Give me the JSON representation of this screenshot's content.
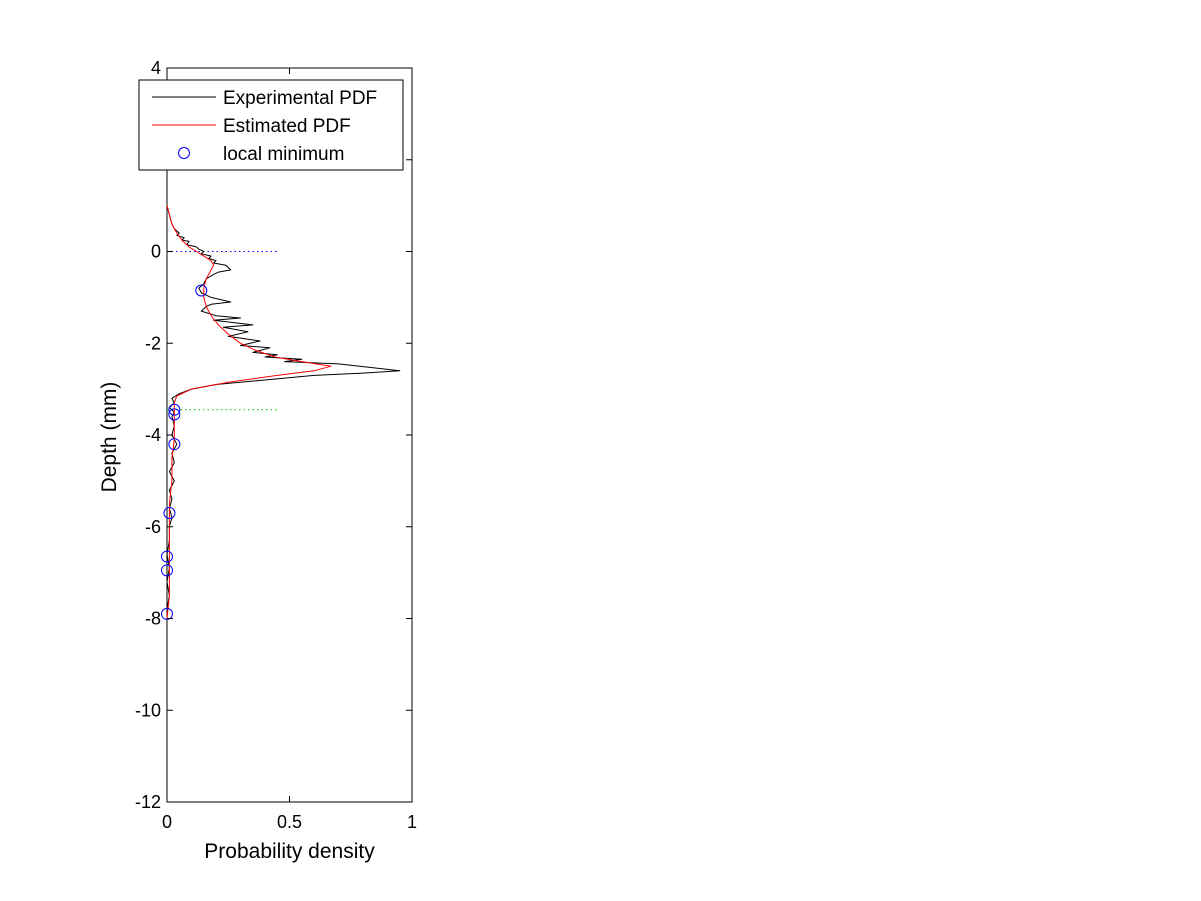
{
  "chart_data": {
    "type": "line",
    "title": "",
    "xlabel": "Probability density",
    "ylabel": "Depth (mm)",
    "xlim": [
      0,
      1
    ],
    "ylim": [
      -12,
      4
    ],
    "x_ticks": [
      0,
      0.5,
      1
    ],
    "x_tick_labels": [
      "0",
      "0.5",
      "1"
    ],
    "y_ticks": [
      -12,
      -10,
      -8,
      -6,
      -4,
      -2,
      0,
      2,
      4
    ],
    "y_tick_labels": [
      "-12",
      "-10",
      "-8",
      "-6",
      "-4",
      "-2",
      "0",
      "",
      "4"
    ],
    "grid": false,
    "legend_position": "top",
    "series": [
      {
        "name": "Experimental PDF",
        "color": "#000000",
        "style": "solid",
        "points": [
          [
            0.0,
            1.0
          ],
          [
            0.01,
            0.8
          ],
          [
            0.02,
            0.6
          ],
          [
            0.03,
            0.5
          ],
          [
            0.05,
            0.4
          ],
          [
            0.04,
            0.35
          ],
          [
            0.07,
            0.3
          ],
          [
            0.06,
            0.25
          ],
          [
            0.09,
            0.22
          ],
          [
            0.08,
            0.15
          ],
          [
            0.12,
            0.1
          ],
          [
            0.13,
            0.05
          ],
          [
            0.15,
            0.0
          ],
          [
            0.14,
            -0.05
          ],
          [
            0.18,
            -0.1
          ],
          [
            0.17,
            -0.15
          ],
          [
            0.2,
            -0.2
          ],
          [
            0.19,
            -0.25
          ],
          [
            0.24,
            -0.3
          ],
          [
            0.26,
            -0.4
          ],
          [
            0.21,
            -0.45
          ],
          [
            0.19,
            -0.5
          ],
          [
            0.16,
            -0.6
          ],
          [
            0.15,
            -0.7
          ],
          [
            0.13,
            -0.8
          ],
          [
            0.14,
            -0.9
          ],
          [
            0.18,
            -1.0
          ],
          [
            0.26,
            -1.1
          ],
          [
            0.18,
            -1.15
          ],
          [
            0.16,
            -1.2
          ],
          [
            0.14,
            -1.3
          ],
          [
            0.2,
            -1.4
          ],
          [
            0.3,
            -1.45
          ],
          [
            0.19,
            -1.5
          ],
          [
            0.35,
            -1.6
          ],
          [
            0.23,
            -1.65
          ],
          [
            0.33,
            -1.75
          ],
          [
            0.25,
            -1.85
          ],
          [
            0.38,
            -1.95
          ],
          [
            0.3,
            -2.05
          ],
          [
            0.42,
            -2.1
          ],
          [
            0.35,
            -2.2
          ],
          [
            0.45,
            -2.25
          ],
          [
            0.4,
            -2.3
          ],
          [
            0.55,
            -2.35
          ],
          [
            0.48,
            -2.4
          ],
          [
            0.7,
            -2.45
          ],
          [
            0.95,
            -2.6
          ],
          [
            0.8,
            -2.65
          ],
          [
            0.6,
            -2.7
          ],
          [
            0.4,
            -2.8
          ],
          [
            0.2,
            -2.9
          ],
          [
            0.1,
            -3.0
          ],
          [
            0.05,
            -3.1
          ],
          [
            0.02,
            -3.2
          ],
          [
            0.03,
            -3.3
          ],
          [
            0.01,
            -3.4
          ],
          [
            0.03,
            -3.5
          ],
          [
            0.02,
            -3.6
          ],
          [
            0.03,
            -3.8
          ],
          [
            0.02,
            -4.0
          ],
          [
            0.04,
            -4.2
          ],
          [
            0.02,
            -4.4
          ],
          [
            0.03,
            -4.6
          ],
          [
            0.01,
            -4.8
          ],
          [
            0.03,
            -5.0
          ],
          [
            0.01,
            -5.2
          ],
          [
            0.02,
            -5.4
          ],
          [
            0.01,
            -5.6
          ],
          [
            0.02,
            -5.8
          ],
          [
            0.01,
            -6.0
          ],
          [
            0.01,
            -6.3
          ],
          [
            0.0,
            -6.6
          ],
          [
            0.01,
            -6.9
          ],
          [
            0.0,
            -7.2
          ],
          [
            0.01,
            -7.5
          ],
          [
            0.0,
            -7.8
          ],
          [
            0.0,
            -8.0
          ]
        ]
      },
      {
        "name": "Estimated PDF",
        "color": "#ff0000",
        "style": "solid",
        "points": [
          [
            0.0,
            1.0
          ],
          [
            0.01,
            0.8
          ],
          [
            0.02,
            0.6
          ],
          [
            0.04,
            0.4
          ],
          [
            0.06,
            0.25
          ],
          [
            0.09,
            0.1
          ],
          [
            0.12,
            0.0
          ],
          [
            0.15,
            -0.1
          ],
          [
            0.18,
            -0.2
          ],
          [
            0.19,
            -0.3
          ],
          [
            0.18,
            -0.4
          ],
          [
            0.17,
            -0.5
          ],
          [
            0.16,
            -0.6
          ],
          [
            0.15,
            -0.8
          ],
          [
            0.15,
            -1.0
          ],
          [
            0.16,
            -1.2
          ],
          [
            0.18,
            -1.4
          ],
          [
            0.21,
            -1.6
          ],
          [
            0.25,
            -1.8
          ],
          [
            0.3,
            -2.0
          ],
          [
            0.36,
            -2.15
          ],
          [
            0.44,
            -2.3
          ],
          [
            0.55,
            -2.4
          ],
          [
            0.67,
            -2.5
          ],
          [
            0.6,
            -2.6
          ],
          [
            0.45,
            -2.7
          ],
          [
            0.25,
            -2.85
          ],
          [
            0.1,
            -3.0
          ],
          [
            0.04,
            -3.15
          ],
          [
            0.03,
            -3.3
          ],
          [
            0.03,
            -3.5
          ],
          [
            0.03,
            -3.8
          ],
          [
            0.03,
            -4.1
          ],
          [
            0.02,
            -4.5
          ],
          [
            0.02,
            -5.0
          ],
          [
            0.01,
            -5.5
          ],
          [
            0.01,
            -6.0
          ],
          [
            0.01,
            -6.5
          ],
          [
            0.01,
            -7.0
          ],
          [
            0.01,
            -7.5
          ],
          [
            0.0,
            -8.0
          ]
        ]
      },
      {
        "name": "local minimum",
        "color": "#0000ff",
        "style": "marker-circle",
        "points": [
          [
            0.14,
            -0.85
          ],
          [
            0.03,
            -3.45
          ],
          [
            0.03,
            -3.55
          ],
          [
            0.03,
            -4.2
          ],
          [
            0.01,
            -5.7
          ],
          [
            0.0,
            -6.65
          ],
          [
            0.0,
            -6.95
          ],
          [
            0.0,
            -7.9
          ]
        ]
      }
    ],
    "reference_lines": [
      {
        "color": "#0000ff",
        "style": "dotted",
        "y": 0.0,
        "x_from": 0.0,
        "x_to": 0.45
      },
      {
        "color": "#00cc00",
        "style": "dotted",
        "y": -3.45,
        "x_from": 0.0,
        "x_to": 0.45
      }
    ]
  }
}
